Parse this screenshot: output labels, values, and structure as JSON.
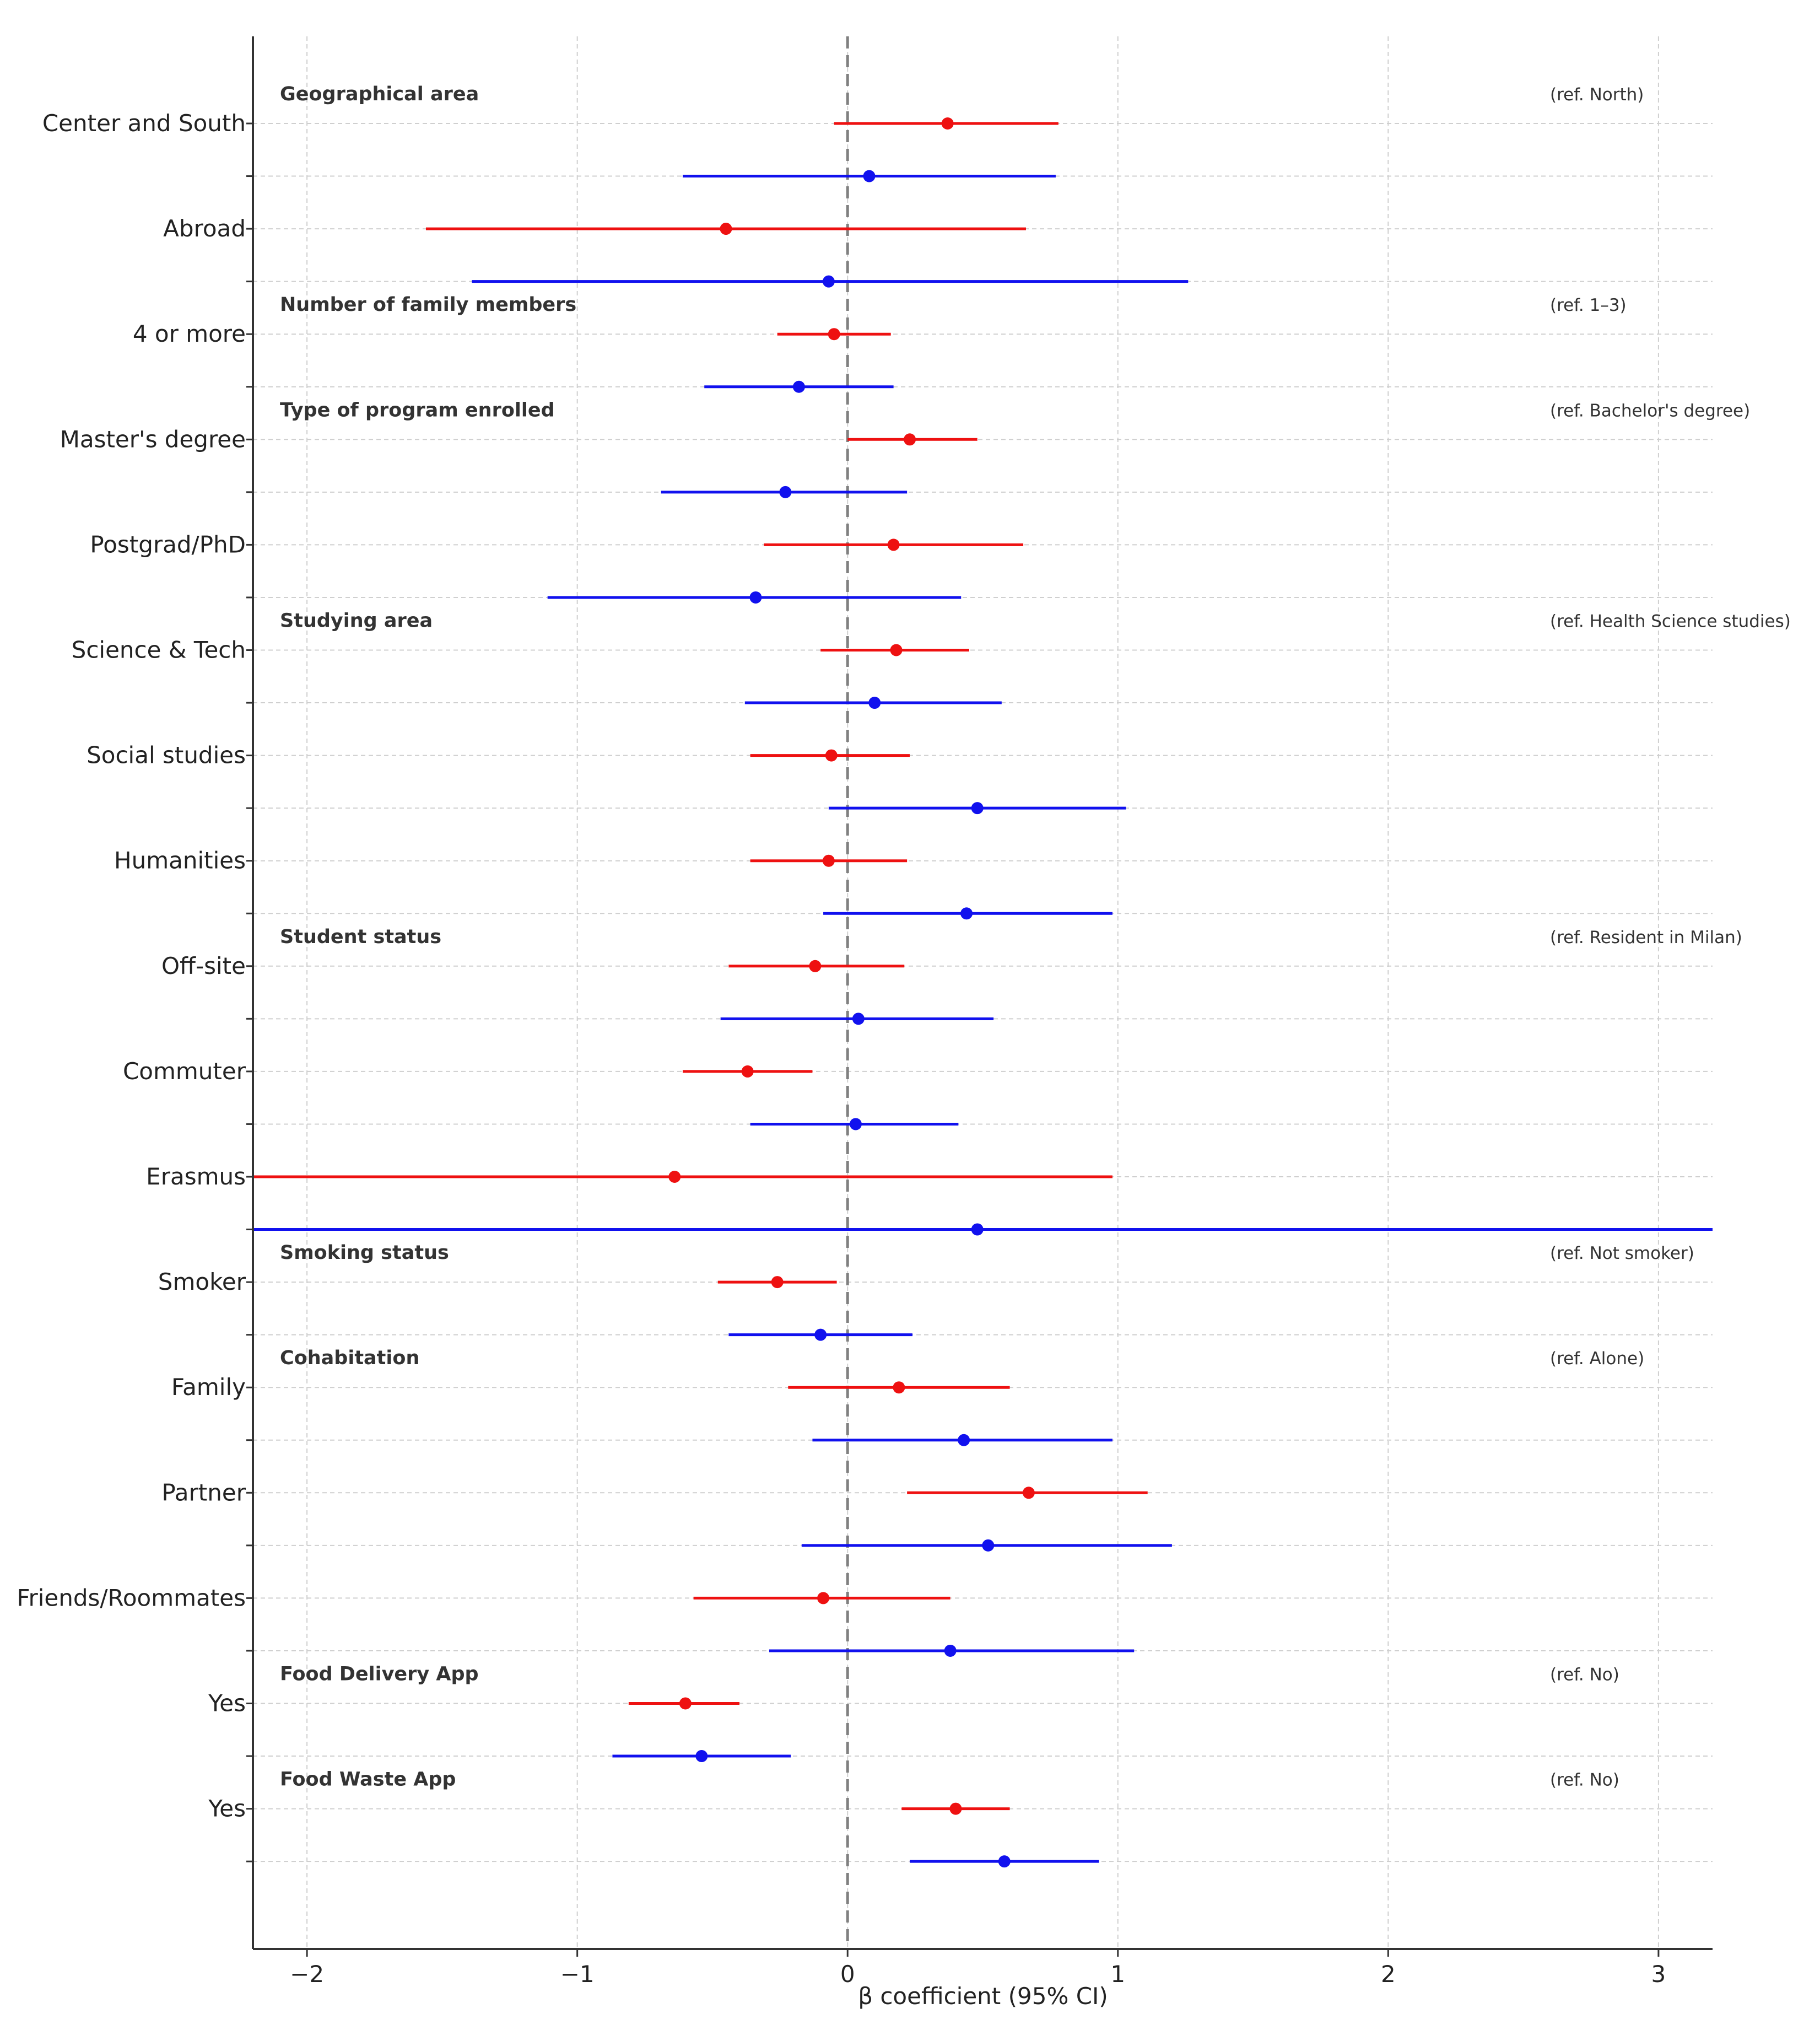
{
  "chart_data": {
    "type": "forest",
    "title": "",
    "xlabel": "β coefficient (95% CI)",
    "xlim": [
      -2.2,
      3.2
    ],
    "xticks": [
      -2,
      -1,
      0,
      1,
      2,
      3
    ],
    "xtick_labels": [
      "−2",
      "−1",
      "0",
      "1",
      "2",
      "3"
    ],
    "reference_line": 0,
    "series_colors": {
      "red": "#ee1111",
      "blue": "#1111ee"
    },
    "groups": [
      {
        "title": "Geographical area",
        "ref": "(ref. North)",
        "first_row": 0
      },
      {
        "title": "Number of family members",
        "ref": "(ref. 1–3)",
        "first_row": 4
      },
      {
        "title": "Type of program enrolled",
        "ref": "(ref. Bachelor's degree)",
        "first_row": 6
      },
      {
        "title": "Studying area",
        "ref": "(ref. Health Science studies)",
        "first_row": 10
      },
      {
        "title": "Student status",
        "ref": "(ref. Resident in Milan)",
        "first_row": 16
      },
      {
        "title": "Smoking status",
        "ref": "(ref. Not smoker)",
        "first_row": 22
      },
      {
        "title": "Cohabitation",
        "ref": "(ref. Alone)",
        "first_row": 24
      },
      {
        "title": "Food Delivery App",
        "ref": "(ref. No)",
        "first_row": 30
      },
      {
        "title": "Food Waste App",
        "ref": "(ref. No)",
        "first_row": 32
      }
    ],
    "rows": [
      {
        "label": "Center and South",
        "series": "red",
        "est": 0.37,
        "lo": -0.05,
        "hi": 0.78
      },
      {
        "label": "",
        "series": "blue",
        "est": 0.08,
        "lo": -0.61,
        "hi": 0.77
      },
      {
        "label": "Abroad",
        "series": "red",
        "est": -0.45,
        "lo": -1.56,
        "hi": 0.66
      },
      {
        "label": "",
        "series": "blue",
        "est": -0.07,
        "lo": -1.39,
        "hi": 1.26
      },
      {
        "label": "4 or more",
        "series": "red",
        "est": -0.05,
        "lo": -0.26,
        "hi": 0.16
      },
      {
        "label": "",
        "series": "blue",
        "est": -0.18,
        "lo": -0.53,
        "hi": 0.17
      },
      {
        "label": "Master's degree",
        "series": "red",
        "est": 0.23,
        "lo": 0.0,
        "hi": 0.48
      },
      {
        "label": "",
        "series": "blue",
        "est": -0.23,
        "lo": -0.69,
        "hi": 0.22
      },
      {
        "label": "Postgrad/PhD",
        "series": "red",
        "est": 0.17,
        "lo": -0.31,
        "hi": 0.65
      },
      {
        "label": "",
        "series": "blue",
        "est": -0.34,
        "lo": -1.11,
        "hi": 0.42
      },
      {
        "label": "Science & Tech",
        "series": "red",
        "est": 0.18,
        "lo": -0.1,
        "hi": 0.45
      },
      {
        "label": "",
        "series": "blue",
        "est": 0.1,
        "lo": -0.38,
        "hi": 0.57
      },
      {
        "label": "Social studies",
        "series": "red",
        "est": -0.06,
        "lo": -0.36,
        "hi": 0.23
      },
      {
        "label": "",
        "series": "blue",
        "est": 0.48,
        "lo": -0.07,
        "hi": 1.03
      },
      {
        "label": "Humanities",
        "series": "red",
        "est": -0.07,
        "lo": -0.36,
        "hi": 0.22
      },
      {
        "label": "",
        "series": "blue",
        "est": 0.44,
        "lo": -0.09,
        "hi": 0.98
      },
      {
        "label": "Off-site",
        "series": "red",
        "est": -0.12,
        "lo": -0.44,
        "hi": 0.21
      },
      {
        "label": "",
        "series": "blue",
        "est": 0.04,
        "lo": -0.47,
        "hi": 0.54
      },
      {
        "label": "Commuter",
        "series": "red",
        "est": -0.37,
        "lo": -0.61,
        "hi": -0.13
      },
      {
        "label": "",
        "series": "blue",
        "est": 0.03,
        "lo": -0.36,
        "hi": 0.41
      },
      {
        "label": "Erasmus",
        "series": "red",
        "est": -0.64,
        "lo": -2.2,
        "hi": 0.98
      },
      {
        "label": "",
        "series": "blue",
        "est": 0.48,
        "lo": -2.2,
        "hi": 3.2
      },
      {
        "label": "Smoker",
        "series": "red",
        "est": -0.26,
        "lo": -0.48,
        "hi": -0.04
      },
      {
        "label": "",
        "series": "blue",
        "est": -0.1,
        "lo": -0.44,
        "hi": 0.24
      },
      {
        "label": "Family",
        "series": "red",
        "est": 0.19,
        "lo": -0.22,
        "hi": 0.6
      },
      {
        "label": "",
        "series": "blue",
        "est": 0.43,
        "lo": -0.13,
        "hi": 0.98
      },
      {
        "label": "Partner",
        "series": "red",
        "est": 0.67,
        "lo": 0.22,
        "hi": 1.11
      },
      {
        "label": "",
        "series": "blue",
        "est": 0.52,
        "lo": -0.17,
        "hi": 1.2
      },
      {
        "label": "Friends/Roommates",
        "series": "red",
        "est": -0.09,
        "lo": -0.57,
        "hi": 0.38
      },
      {
        "label": "",
        "series": "blue",
        "est": 0.38,
        "lo": -0.29,
        "hi": 1.06
      },
      {
        "label": "Yes",
        "series": "red",
        "est": -0.6,
        "lo": -0.81,
        "hi": -0.4
      },
      {
        "label": "",
        "series": "blue",
        "est": -0.54,
        "lo": -0.87,
        "hi": -0.21
      },
      {
        "label": "Yes",
        "series": "red",
        "est": 0.4,
        "lo": 0.2,
        "hi": 0.6
      },
      {
        "label": "",
        "series": "blue",
        "est": 0.58,
        "lo": 0.23,
        "hi": 0.93
      }
    ]
  }
}
